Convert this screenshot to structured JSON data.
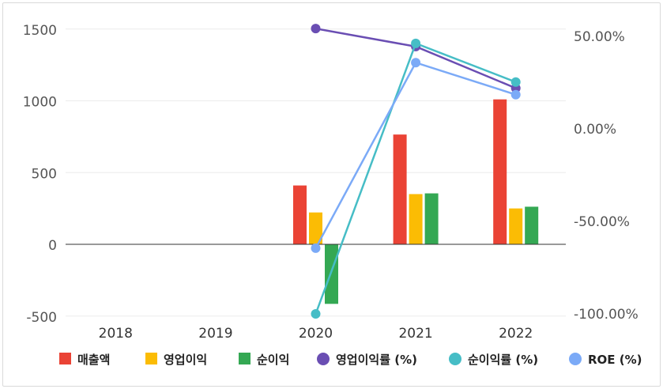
{
  "chart_data": {
    "type": "bar",
    "categories": [
      "2018",
      "2019",
      "2020",
      "2021",
      "2022"
    ],
    "left_axis": {
      "ticks": [
        "1500",
        "1000",
        "500",
        "0",
        "-500"
      ],
      "ylim": [
        -500,
        1500
      ]
    },
    "right_axis": {
      "ticks": [
        "50.00%",
        "0.00%",
        "-50.00%",
        "-100.00%"
      ],
      "ylim": [
        -100,
        60
      ]
    },
    "bar_series": [
      {
        "name": "매출액",
        "color": "#ea4335",
        "values": [
          null,
          null,
          410,
          765,
          1010
        ]
      },
      {
        "name": "영업이익",
        "color": "#fbbc04",
        "values": [
          null,
          null,
          222,
          350,
          250
        ]
      },
      {
        "name": "순이익",
        "color": "#34a853",
        "values": [
          null,
          null,
          -415,
          355,
          262
        ]
      }
    ],
    "line_series": [
      {
        "name": "영업이익률 (%)",
        "color": "#6a4eb3",
        "values": [
          null,
          null,
          54.2,
          44.5,
          22.0
        ]
      },
      {
        "name": "순이익률 (%)",
        "color": "#46bdc6",
        "values": [
          null,
          null,
          -100.0,
          46.2,
          25.3
        ]
      },
      {
        "name": "ROE (%)",
        "color": "#7baaf7",
        "values": [
          null,
          null,
          -64.5,
          35.8,
          18.5
        ]
      }
    ],
    "grid": true,
    "legend_position": "bottom"
  }
}
